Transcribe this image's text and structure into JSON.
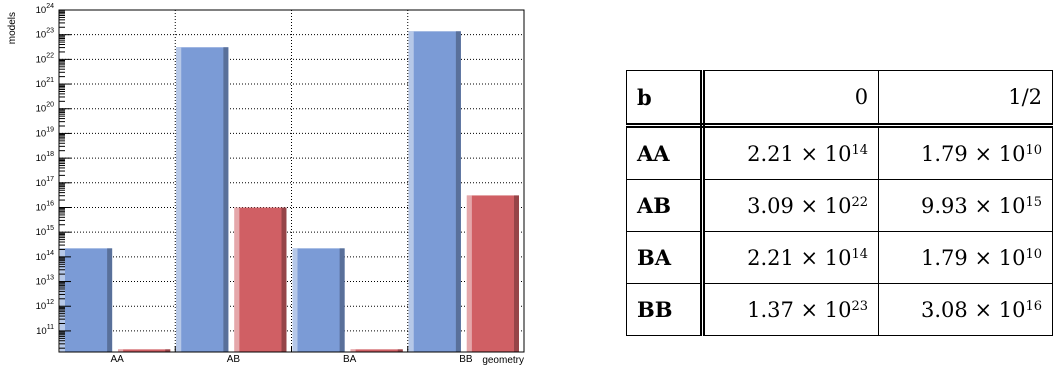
{
  "chart_data": {
    "type": "bar",
    "categories": [
      "AA",
      "AB",
      "BA",
      "BB"
    ],
    "series": [
      {
        "values": [
          221000000000000.0,
          3.09e+22,
          221000000000000.0,
          1.37e+23
        ],
        "color": "#7b9bd6"
      },
      {
        "values": [
          17900000000.0,
          9930000000000000.0,
          17900000000.0,
          3.08e+16
        ],
        "color": "#d05f64"
      }
    ],
    "ylabel": "models",
    "xlabel": "geometry",
    "yscale": "log",
    "ylim": [
      14000000000.0,
      1e+24
    ],
    "yticks": [
      {
        "base": "10",
        "exp": "11",
        "value": 100000000000.0
      },
      {
        "base": "10",
        "exp": "12",
        "value": 1000000000000.0
      },
      {
        "base": "10",
        "exp": "13",
        "value": 10000000000000.0
      },
      {
        "base": "10",
        "exp": "14",
        "value": 100000000000000.0
      },
      {
        "base": "10",
        "exp": "15",
        "value": 1000000000000000.0
      },
      {
        "base": "10",
        "exp": "16",
        "value": 1e+16
      },
      {
        "base": "10",
        "exp": "17",
        "value": 1e+17
      },
      {
        "base": "10",
        "exp": "18",
        "value": 1e+18
      },
      {
        "base": "10",
        "exp": "19",
        "value": 1e+19
      },
      {
        "base": "10",
        "exp": "20",
        "value": 1e+20
      },
      {
        "base": "10",
        "exp": "21",
        "value": 1e+21
      },
      {
        "base": "10",
        "exp": "22",
        "value": 1e+22
      },
      {
        "base": "10",
        "exp": "23",
        "value": 1e+23
      },
      {
        "base": "10",
        "exp": "24",
        "value": 1e+24
      }
    ],
    "grid": true
  },
  "table": {
    "corner": "b",
    "columns": [
      "0",
      "1/2"
    ],
    "rows": [
      {
        "label": "AA",
        "cells": [
          {
            "mant": "2.21",
            "exp": "14"
          },
          {
            "mant": "1.79",
            "exp": "10"
          }
        ]
      },
      {
        "label": "AB",
        "cells": [
          {
            "mant": "3.09",
            "exp": "22"
          },
          {
            "mant": "9.93",
            "exp": "15"
          }
        ]
      },
      {
        "label": "BA",
        "cells": [
          {
            "mant": "2.21",
            "exp": "14"
          },
          {
            "mant": "1.79",
            "exp": "10"
          }
        ]
      },
      {
        "label": "BB",
        "cells": [
          {
            "mant": "1.37",
            "exp": "23"
          },
          {
            "mant": "3.08",
            "exp": "16"
          }
        ]
      }
    ]
  }
}
